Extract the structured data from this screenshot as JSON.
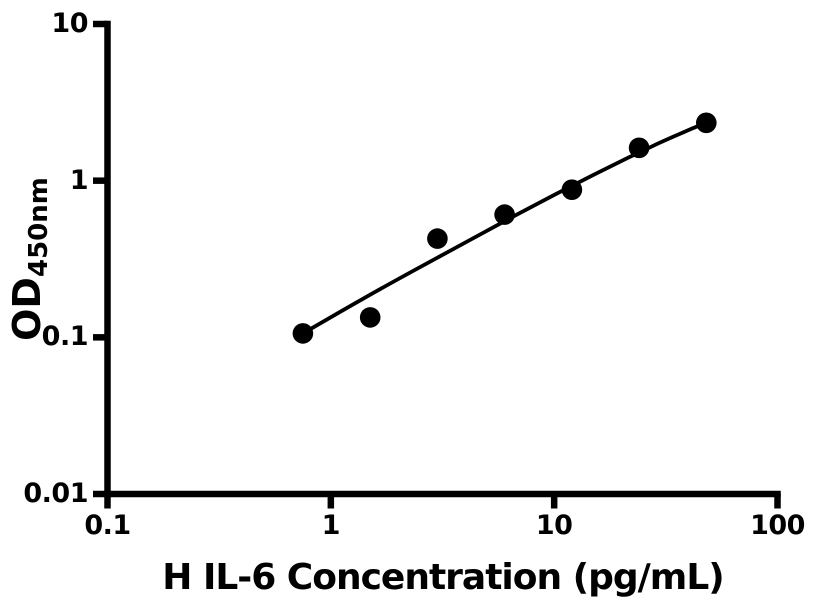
{
  "figure": {
    "background": "#ffffff",
    "axis_color": "#000000",
    "text_color": "#000000",
    "marker_color": "#000000",
    "curve_color": "#000000",
    "marker_radius": 10.3,
    "y_axis": {
      "title_main": "OD",
      "title_sub": "450nm"
    },
    "x_axis": {
      "title": "H IL-6 Concentration (pg/mL)"
    }
  },
  "chart_data": {
    "type": "scatter",
    "title": "",
    "xlabel": "H IL-6 Concentration (pg/mL)",
    "ylabel": "OD450nm",
    "xscale": "log",
    "yscale": "log",
    "xlim": [
      0.1,
      100
    ],
    "ylim": [
      0.01,
      10
    ],
    "grid": false,
    "legend": null,
    "x_ticks": [
      {
        "value": 0.1,
        "label": "0.1"
      },
      {
        "value": 1,
        "label": "1"
      },
      {
        "value": 10,
        "label": "10"
      },
      {
        "value": 100,
        "label": "100"
      }
    ],
    "y_ticks": [
      {
        "value": 10,
        "label": "10"
      },
      {
        "value": 1,
        "label": "1"
      },
      {
        "value": 0.1,
        "label": "0.1"
      },
      {
        "value": 0.01,
        "label": "0.01"
      }
    ],
    "series": [
      {
        "name": "standard-points",
        "type": "scatter",
        "x": [
          0.75,
          1.5,
          3,
          6,
          12,
          24,
          48
        ],
        "y": [
          0.106,
          0.134,
          0.427,
          0.607,
          0.876,
          1.62,
          2.34
        ]
      },
      {
        "name": "fit-curve",
        "type": "line",
        "x": [
          0.75,
          1.38,
          2.42,
          4.08,
          6.58,
          10.2,
          15.1,
          21.5,
          29.3,
          38.4,
          48
        ],
        "y": [
          0.106,
          0.175,
          0.273,
          0.409,
          0.592,
          0.823,
          1.094,
          1.403,
          1.731,
          2.055,
          2.341
        ]
      }
    ]
  }
}
